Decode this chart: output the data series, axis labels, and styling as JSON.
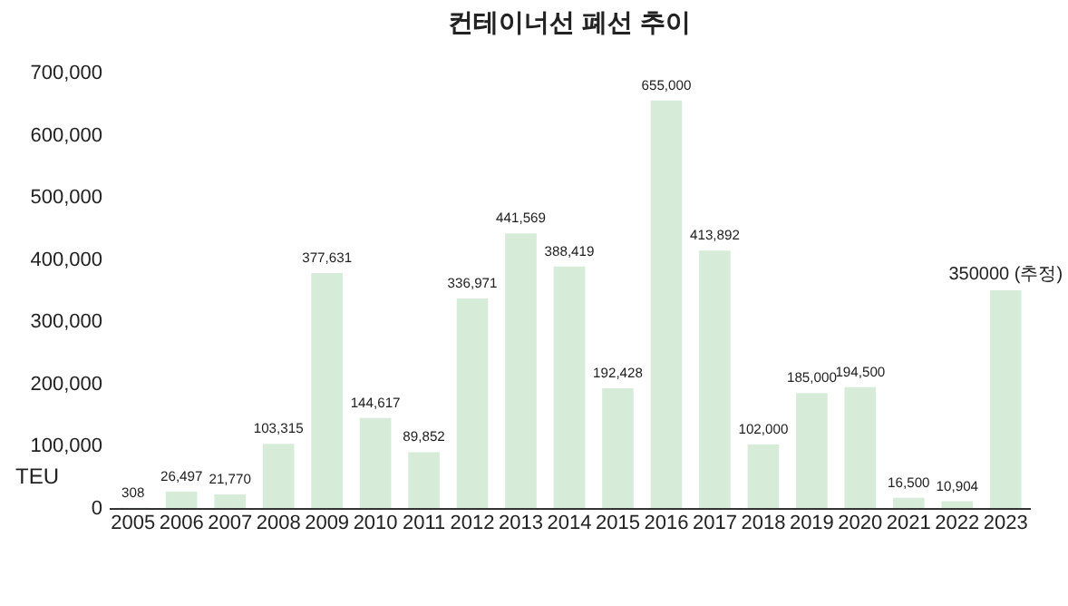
{
  "chart_data": {
    "type": "bar",
    "title": "컨테이너선 폐선 추이",
    "ylabel": "TEU",
    "categories": [
      "2005",
      "2006",
      "2007",
      "2008",
      "2009",
      "2010",
      "2011",
      "2012",
      "2013",
      "2014",
      "2015",
      "2016",
      "2017",
      "2018",
      "2019",
      "2020",
      "2021",
      "2022",
      "2023"
    ],
    "values": [
      308,
      26497,
      21770,
      103315,
      377631,
      144617,
      89852,
      336971,
      441569,
      388419,
      192428,
      655000,
      413892,
      102000,
      185000,
      194500,
      16500,
      10904,
      350000
    ],
    "value_labels": [
      "308",
      "26,497",
      "21,770",
      "103,315",
      "377,631",
      "144,617",
      "89,852",
      "336,971",
      "441,569",
      "388,419",
      "192,428",
      "655,000",
      "413,892",
      "102,000",
      "185,000",
      "194,500",
      "16,500",
      "10,904",
      "350000 (추정)"
    ],
    "color": "#d6ecd9",
    "ylim": [
      0,
      700000
    ],
    "yticks": [
      0,
      {
        "value": 100000,
        "label": "100,000"
      },
      {
        "value": 200000,
        "label": "200,000"
      },
      {
        "value": 300000,
        "label": "300,000"
      },
      {
        "value": 400000,
        "label": "400,000"
      },
      {
        "value": 500000,
        "label": "500,000"
      },
      {
        "value": 600000,
        "label": "600,000"
      },
      {
        "value": 700000,
        "label": "700,000"
      }
    ],
    "grid": false
  }
}
